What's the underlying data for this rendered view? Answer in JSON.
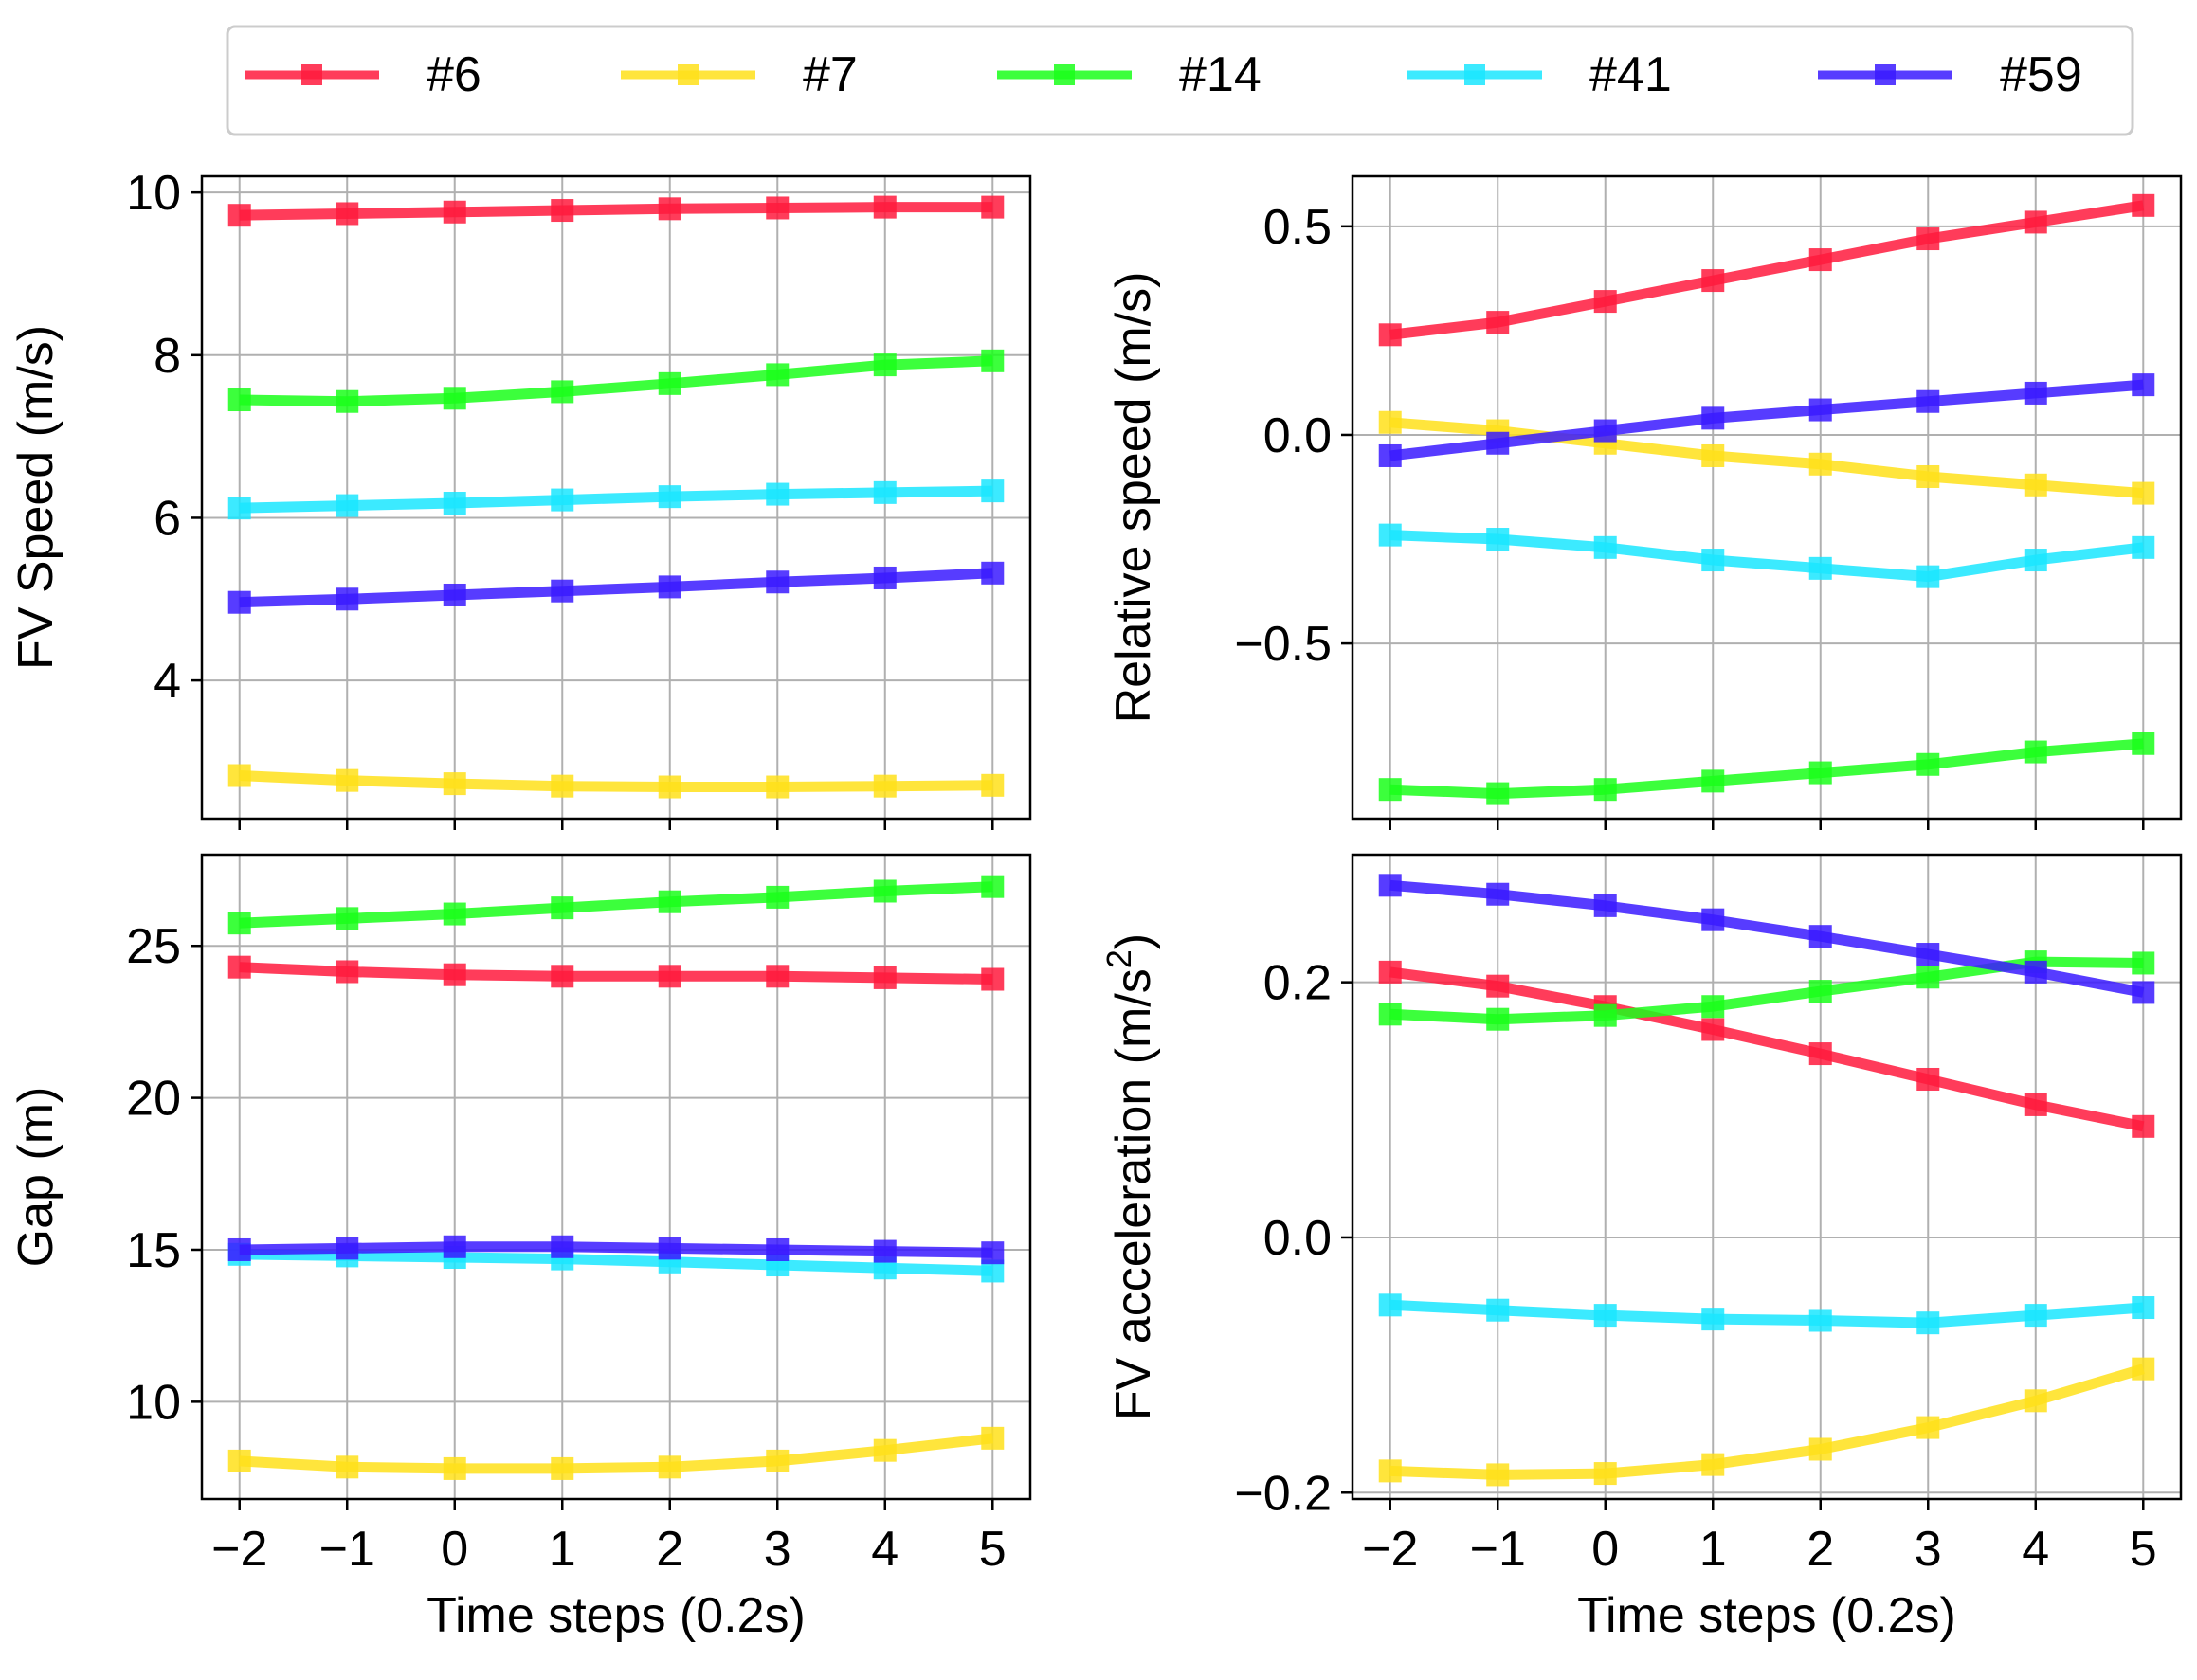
{
  "legend": {
    "placement": "top-center",
    "entries": [
      {
        "label": "#6",
        "color": "#ff1a3d"
      },
      {
        "label": "#7",
        "color": "#ffe01a"
      },
      {
        "label": "#14",
        "color": "#1aff1a"
      },
      {
        "label": "#41",
        "color": "#1ae6ff"
      },
      {
        "label": "#59",
        "color": "#3a1aff"
      }
    ]
  },
  "chart_data": [
    {
      "type": "line",
      "title": "",
      "xlabel": "",
      "ylabel": "FV Speed (m/s)",
      "x": [
        -2,
        -1,
        0,
        1,
        2,
        3,
        4,
        5
      ],
      "xticks": [
        "−2",
        "−1",
        "0",
        "1",
        "2",
        "3",
        "4",
        "5"
      ],
      "ylim": [
        2.3,
        10.2
      ],
      "yticks": [
        4,
        6,
        8,
        10
      ],
      "yticklabels": [
        "4",
        "6",
        "8",
        "10"
      ],
      "grid": true,
      "series": [
        {
          "name": "#6",
          "values": [
            9.72,
            9.74,
            9.76,
            9.78,
            9.8,
            9.81,
            9.82,
            9.82
          ]
        },
        {
          "name": "#7",
          "values": [
            2.83,
            2.77,
            2.73,
            2.7,
            2.69,
            2.69,
            2.7,
            2.71
          ]
        },
        {
          "name": "#14",
          "values": [
            7.45,
            7.43,
            7.47,
            7.55,
            7.65,
            7.76,
            7.88,
            7.93
          ]
        },
        {
          "name": "#41",
          "values": [
            6.12,
            6.15,
            6.18,
            6.22,
            6.26,
            6.29,
            6.31,
            6.33
          ]
        },
        {
          "name": "#59",
          "values": [
            4.96,
            5.0,
            5.05,
            5.1,
            5.15,
            5.21,
            5.26,
            5.32
          ]
        }
      ]
    },
    {
      "type": "line",
      "title": "",
      "xlabel": "",
      "ylabel": "Relative speed (m/s)",
      "x": [
        -2,
        -1,
        0,
        1,
        2,
        3,
        4,
        5
      ],
      "xticks": [
        "−2",
        "−1",
        "0",
        "1",
        "2",
        "3",
        "4",
        "5"
      ],
      "ylim": [
        -0.92,
        0.62
      ],
      "yticks": [
        -0.5,
        0.0,
        0.5
      ],
      "yticklabels": [
        "−0.5",
        "0.0",
        "0.5"
      ],
      "grid": true,
      "series": [
        {
          "name": "#6",
          "values": [
            0.24,
            0.27,
            0.32,
            0.37,
            0.42,
            0.47,
            0.51,
            0.55
          ]
        },
        {
          "name": "#7",
          "values": [
            0.03,
            0.01,
            -0.02,
            -0.05,
            -0.07,
            -0.1,
            -0.12,
            -0.14
          ]
        },
        {
          "name": "#14",
          "values": [
            -0.85,
            -0.86,
            -0.85,
            -0.83,
            -0.81,
            -0.79,
            -0.76,
            -0.74
          ]
        },
        {
          "name": "#41",
          "values": [
            -0.24,
            -0.25,
            -0.27,
            -0.3,
            -0.32,
            -0.34,
            -0.3,
            -0.27
          ]
        },
        {
          "name": "#59",
          "values": [
            -0.05,
            -0.02,
            0.01,
            0.04,
            0.06,
            0.08,
            0.1,
            0.12
          ]
        }
      ]
    },
    {
      "type": "line",
      "title": "",
      "xlabel": "Time steps (0.2s)",
      "ylabel": "Gap (m)",
      "x": [
        -2,
        -1,
        0,
        1,
        2,
        3,
        4,
        5
      ],
      "xticks": [
        "−2",
        "−1",
        "0",
        "1",
        "2",
        "3",
        "4",
        "5"
      ],
      "ylim": [
        6.8,
        28.0
      ],
      "yticks": [
        10,
        15,
        20,
        25
      ],
      "yticklabels": [
        "10",
        "15",
        "20",
        "25"
      ],
      "grid": true,
      "series": [
        {
          "name": "#6",
          "values": [
            24.3,
            24.15,
            24.05,
            24.0,
            24.0,
            24.0,
            23.95,
            23.9
          ]
        },
        {
          "name": "#7",
          "values": [
            8.05,
            7.85,
            7.8,
            7.8,
            7.85,
            8.05,
            8.4,
            8.8
          ]
        },
        {
          "name": "#14",
          "values": [
            25.75,
            25.9,
            26.05,
            26.25,
            26.45,
            26.6,
            26.8,
            26.95
          ]
        },
        {
          "name": "#41",
          "values": [
            14.85,
            14.8,
            14.75,
            14.7,
            14.6,
            14.5,
            14.4,
            14.3
          ]
        },
        {
          "name": "#59",
          "values": [
            15.0,
            15.05,
            15.1,
            15.1,
            15.05,
            15.0,
            14.95,
            14.9
          ]
        }
      ]
    },
    {
      "type": "line",
      "title": "",
      "xlabel": "Time steps (0.2s)",
      "ylabel": "FV acceleration (m/s",
      "ylabel_sup": "2",
      "ylabel_tail": ")",
      "x": [
        -2,
        -1,
        0,
        1,
        2,
        3,
        4,
        5
      ],
      "xticks": [
        "−2",
        "−1",
        "0",
        "1",
        "2",
        "3",
        "4",
        "5"
      ],
      "ylim": [
        -0.205,
        0.3
      ],
      "yticks": [
        -0.2,
        0.0,
        0.2
      ],
      "yticklabels": [
        "−0.2",
        "0.0",
        "0.2"
      ],
      "grid": true,
      "series": [
        {
          "name": "#6",
          "values": [
            0.208,
            0.197,
            0.181,
            0.163,
            0.144,
            0.124,
            0.104,
            0.087
          ]
        },
        {
          "name": "#7",
          "values": [
            -0.183,
            -0.186,
            -0.185,
            -0.178,
            -0.166,
            -0.149,
            -0.128,
            -0.103
          ]
        },
        {
          "name": "#14",
          "values": [
            0.175,
            0.171,
            0.174,
            0.181,
            0.193,
            0.204,
            0.216,
            0.215
          ]
        },
        {
          "name": "#41",
          "values": [
            -0.053,
            -0.057,
            -0.061,
            -0.064,
            -0.065,
            -0.067,
            -0.061,
            -0.055
          ]
        },
        {
          "name": "#59",
          "values": [
            0.276,
            0.269,
            0.26,
            0.249,
            0.236,
            0.222,
            0.208,
            0.192
          ]
        }
      ]
    }
  ]
}
